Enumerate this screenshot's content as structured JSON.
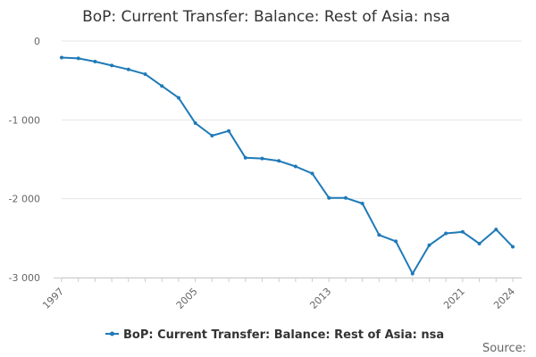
{
  "chart_data": {
    "type": "line",
    "title": "BoP: Current Transfer: Balance: Rest of Asia: nsa",
    "xlabel": "",
    "ylabel": "",
    "x": [
      1997,
      1998,
      1999,
      2000,
      2001,
      2002,
      2003,
      2004,
      2005,
      2006,
      2007,
      2008,
      2009,
      2010,
      2011,
      2012,
      2013,
      2014,
      2015,
      2016,
      2017,
      2018,
      2019,
      2020,
      2021,
      2022,
      2023,
      2024
    ],
    "series": [
      {
        "name": "BoP: Current Transfer: Balance: Rest of Asia: nsa",
        "color": "#1f7ab8",
        "values": [
          -210,
          -220,
          -260,
          -310,
          -360,
          -420,
          -570,
          -720,
          -1040,
          -1200,
          -1140,
          -1480,
          -1490,
          -1520,
          -1590,
          -1680,
          -1990,
          -1990,
          -2060,
          -2460,
          -2540,
          -2950,
          -2590,
          -2440,
          -2420,
          -2570,
          -2390,
          -2610
        ]
      }
    ],
    "ylim": [
      -3000,
      0
    ],
    "yticks": [
      0,
      -1000,
      -2000,
      -3000
    ],
    "ytick_labels": [
      "0",
      "-1 000",
      "-2 000",
      "-3 000"
    ],
    "xticks": [
      1997,
      2005,
      2013,
      2021,
      2024
    ],
    "grid": true,
    "legend": "bottom-center",
    "source_label": "Source:"
  }
}
